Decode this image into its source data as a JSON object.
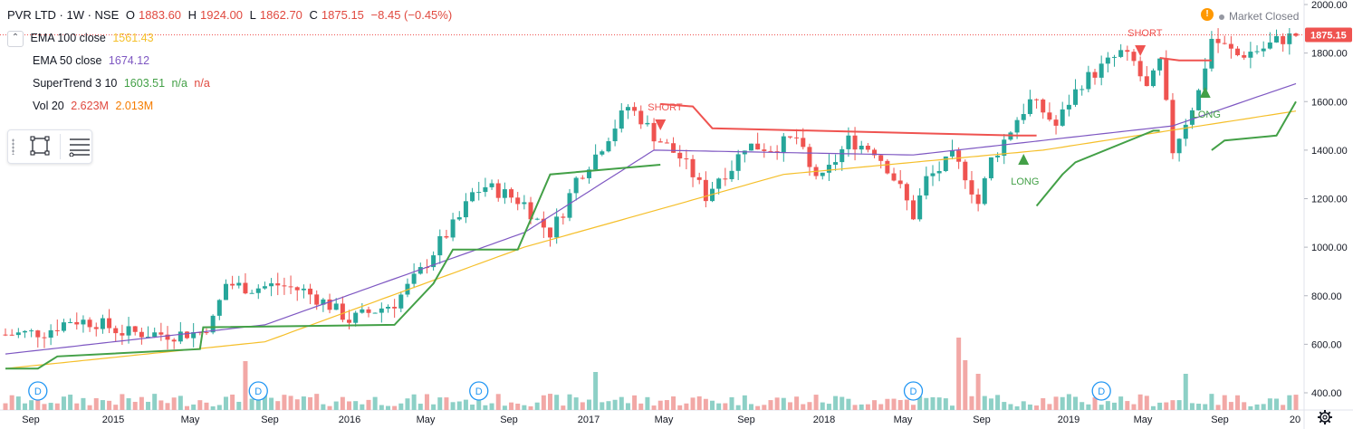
{
  "header": {
    "symbol": "PVR LTD · 1W · NSE",
    "open_label": "O",
    "open": "1883.60",
    "high_label": "H",
    "high": "1924.00",
    "low_label": "L",
    "low": "1862.70",
    "close_label": "C",
    "close": "1875.15",
    "change": "−8.45 (−0.45%)"
  },
  "indicators": {
    "ema100": {
      "label": "EMA 100 close",
      "value": "1561.43",
      "color": "#f5bf2a"
    },
    "ema50": {
      "label": "EMA 50 close",
      "value": "1674.12",
      "color": "#7e57c2"
    },
    "supertrend": {
      "label": "SuperTrend 3 10",
      "value": "1603.51",
      "na1": "n/a",
      "na2": "n/a",
      "color": "#43a047",
      "na_color": "#e0493f"
    },
    "volume": {
      "label": "Vol 20",
      "value1": "2.623M",
      "value2": "2.013M",
      "color1": "#e0493f",
      "color2": "#f57c00"
    }
  },
  "market_status": "Market Closed",
  "price_marker": "1875.15",
  "signals": {
    "short": "SHORT",
    "long": "LONG"
  },
  "dividend_marker": "D",
  "colors": {
    "up": "#26a69a",
    "down": "#ef5350",
    "up_vol": "#8dd0c6",
    "down_vol": "#f2a8a6",
    "axis_text": "#131722",
    "price_tag": "#ef5350"
  },
  "chart_data": {
    "type": "candlestick",
    "symbol": "PVR LTD",
    "interval": "1W",
    "exchange": "NSE",
    "y_axis": {
      "ticks": [
        400,
        600,
        800,
        1000,
        1200,
        1400,
        1600,
        1800,
        2000
      ],
      "position": "right"
    },
    "x_axis": {
      "ticks": [
        "Sep",
        "2015",
        "May",
        "Sep",
        "2016",
        "May",
        "Sep",
        "2017",
        "May",
        "Sep",
        "2018",
        "May",
        "Sep",
        "2019",
        "May",
        "Sep",
        "20"
      ]
    },
    "price_path": [
      [
        0,
        640
      ],
      [
        6,
        650
      ],
      [
        10,
        700
      ],
      [
        14,
        690
      ],
      [
        18,
        650
      ],
      [
        22,
        645
      ],
      [
        26,
        640
      ],
      [
        30,
        650
      ],
      [
        32,
        700
      ],
      [
        34,
        850
      ],
      [
        38,
        830
      ],
      [
        42,
        845
      ],
      [
        46,
        820
      ],
      [
        50,
        760
      ],
      [
        53,
        700
      ],
      [
        56,
        730
      ],
      [
        60,
        770
      ],
      [
        64,
        900
      ],
      [
        67,
        1020
      ],
      [
        70,
        1120
      ],
      [
        72,
        1220
      ],
      [
        74,
        1250
      ],
      [
        77,
        1220
      ],
      [
        80,
        1180
      ],
      [
        82,
        1110
      ],
      [
        84,
        1060
      ],
      [
        86,
        1150
      ],
      [
        88,
        1280
      ],
      [
        91,
        1380
      ],
      [
        94,
        1500
      ],
      [
        96,
        1580
      ],
      [
        98,
        1530
      ],
      [
        100,
        1460
      ],
      [
        104,
        1370
      ],
      [
        106,
        1300
      ],
      [
        108,
        1210
      ],
      [
        110,
        1290
      ],
      [
        112,
        1330
      ],
      [
        114,
        1420
      ],
      [
        118,
        1410
      ],
      [
        122,
        1450
      ],
      [
        124,
        1320
      ],
      [
        126,
        1280
      ],
      [
        128,
        1360
      ],
      [
        130,
        1440
      ],
      [
        134,
        1400
      ],
      [
        136,
        1330
      ],
      [
        138,
        1240
      ],
      [
        140,
        1130
      ],
      [
        142,
        1280
      ],
      [
        144,
        1320
      ],
      [
        146,
        1370
      ],
      [
        148,
        1300
      ],
      [
        150,
        1180
      ],
      [
        152,
        1360
      ],
      [
        154,
        1440
      ],
      [
        156,
        1530
      ],
      [
        158,
        1600
      ],
      [
        160,
        1560
      ],
      [
        162,
        1500
      ],
      [
        164,
        1600
      ],
      [
        166,
        1680
      ],
      [
        170,
        1760
      ],
      [
        172,
        1800
      ],
      [
        174,
        1760
      ],
      [
        176,
        1650
      ],
      [
        177,
        1700
      ],
      [
        178,
        1760
      ],
      [
        180,
        1400
      ],
      [
        182,
        1520
      ],
      [
        184,
        1640
      ],
      [
        186,
        1860
      ],
      [
        190,
        1790
      ],
      [
        194,
        1820
      ],
      [
        196,
        1850
      ],
      [
        199,
        1875
      ]
    ],
    "ema100_path": [
      [
        0,
        500
      ],
      [
        40,
        610
      ],
      [
        80,
        1000
      ],
      [
        120,
        1300
      ],
      [
        160,
        1400
      ],
      [
        199,
        1561
      ]
    ],
    "ema50_path": [
      [
        0,
        560
      ],
      [
        40,
        680
      ],
      [
        80,
        1060
      ],
      [
        100,
        1400
      ],
      [
        140,
        1380
      ],
      [
        180,
        1500
      ],
      [
        199,
        1674
      ]
    ],
    "supertrend_segments": [
      {
        "dir": "up",
        "points": [
          [
            0,
            500
          ],
          [
            5,
            500
          ],
          [
            8,
            550
          ],
          [
            30,
            580
          ],
          [
            30.5,
            670
          ],
          [
            60,
            680
          ],
          [
            66,
            850
          ],
          [
            69,
            990
          ],
          [
            79,
            990
          ],
          [
            84,
            1300
          ],
          [
            101,
            1340
          ]
        ]
      },
      {
        "dir": "down",
        "points": [
          [
            101,
            1590
          ],
          [
            106,
            1580
          ],
          [
            109,
            1490
          ],
          [
            156,
            1460
          ],
          [
            159,
            1460
          ]
        ]
      },
      {
        "dir": "up",
        "points": [
          [
            159,
            1170
          ],
          [
            163,
            1300
          ],
          [
            165,
            1350
          ],
          [
            177,
            1480
          ],
          [
            178,
            1480
          ]
        ]
      },
      {
        "dir": "down",
        "points": [
          [
            178,
            1780
          ],
          [
            181,
            1770
          ],
          [
            186,
            1770
          ]
        ]
      },
      {
        "dir": "up",
        "points": [
          [
            186,
            1400
          ],
          [
            188,
            1440
          ],
          [
            196,
            1460
          ],
          [
            199,
            1600
          ]
        ]
      }
    ],
    "signals": [
      {
        "type": "SHORT",
        "bar": 101
      },
      {
        "type": "LONG",
        "bar": 157
      },
      {
        "type": "SHORT",
        "bar": 175
      },
      {
        "type": "LONG",
        "bar": 185
      }
    ],
    "dividends_at": [
      5,
      39,
      73,
      140,
      169
    ]
  }
}
